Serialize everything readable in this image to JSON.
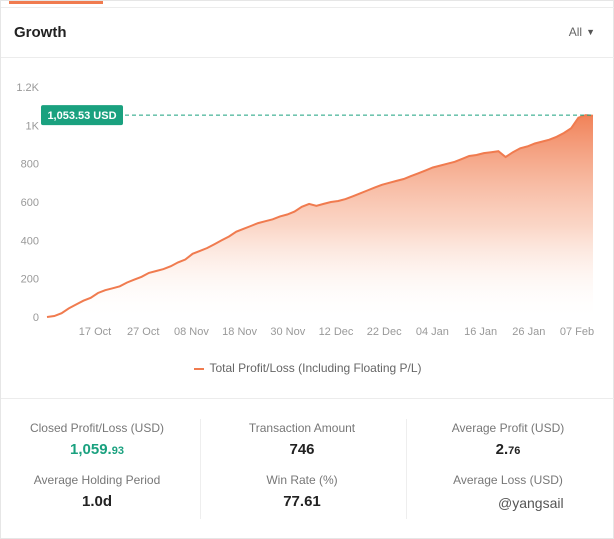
{
  "widget": {
    "title": "Growth",
    "range_label": "All",
    "legend_label": "Total Profit/Loss (Including Floating P/L)",
    "colors": {
      "accent": "#f07b4f",
      "badge": "#1aa17f",
      "positive": "#1aa17f"
    }
  },
  "chart_data": {
    "type": "area",
    "title": "",
    "xlabel": "",
    "ylabel": "",
    "ylim": [
      0,
      1200
    ],
    "yticks": [
      0,
      200,
      400,
      600,
      800,
      1000,
      1200
    ],
    "ytick_labels": [
      "0",
      "200",
      "400",
      "600",
      "800",
      "1K",
      "1.2K"
    ],
    "xticks": [
      "17 Oct",
      "27 Oct",
      "08 Nov",
      "18 Nov",
      "30 Nov",
      "12 Dec",
      "22 Dec",
      "04 Jan",
      "16 Jan",
      "26 Jan",
      "07 Feb"
    ],
    "current_value_label": "1,053.53 USD",
    "current_value": 1053.53,
    "series": [
      {
        "name": "Total Profit/Loss (Including Floating P/L)",
        "color": "#f07b4f",
        "values": [
          0,
          5,
          20,
          45,
          65,
          85,
          100,
          125,
          140,
          150,
          160,
          180,
          195,
          210,
          230,
          240,
          250,
          265,
          285,
          300,
          330,
          345,
          360,
          380,
          400,
          420,
          445,
          460,
          475,
          490,
          500,
          510,
          525,
          535,
          550,
          575,
          590,
          580,
          590,
          600,
          605,
          615,
          630,
          645,
          660,
          675,
          690,
          700,
          710,
          720,
          735,
          750,
          765,
          780,
          790,
          800,
          810,
          825,
          840,
          845,
          855,
          860,
          865,
          835,
          860,
          880,
          890,
          905,
          915,
          925,
          940,
          960,
          985,
          1040,
          1053.53,
          1050
        ]
      }
    ]
  },
  "stats": {
    "closed_pl": {
      "label": "Closed Profit/Loss (USD)",
      "value_main": "1,059.",
      "value_small": "93"
    },
    "transaction_amount": {
      "label": "Transaction Amount",
      "value": "746"
    },
    "average_profit": {
      "label": "Average Profit (USD)",
      "value_main": "2.",
      "value_small": "76"
    },
    "holding_period": {
      "label": "Average Holding Period",
      "value": "1.0d"
    },
    "win_rate": {
      "label": "Win Rate (%)",
      "value": "77.61"
    },
    "average_loss": {
      "label": "Average Loss (USD)"
    }
  },
  "watermark": {
    "text": "@yangsail"
  }
}
